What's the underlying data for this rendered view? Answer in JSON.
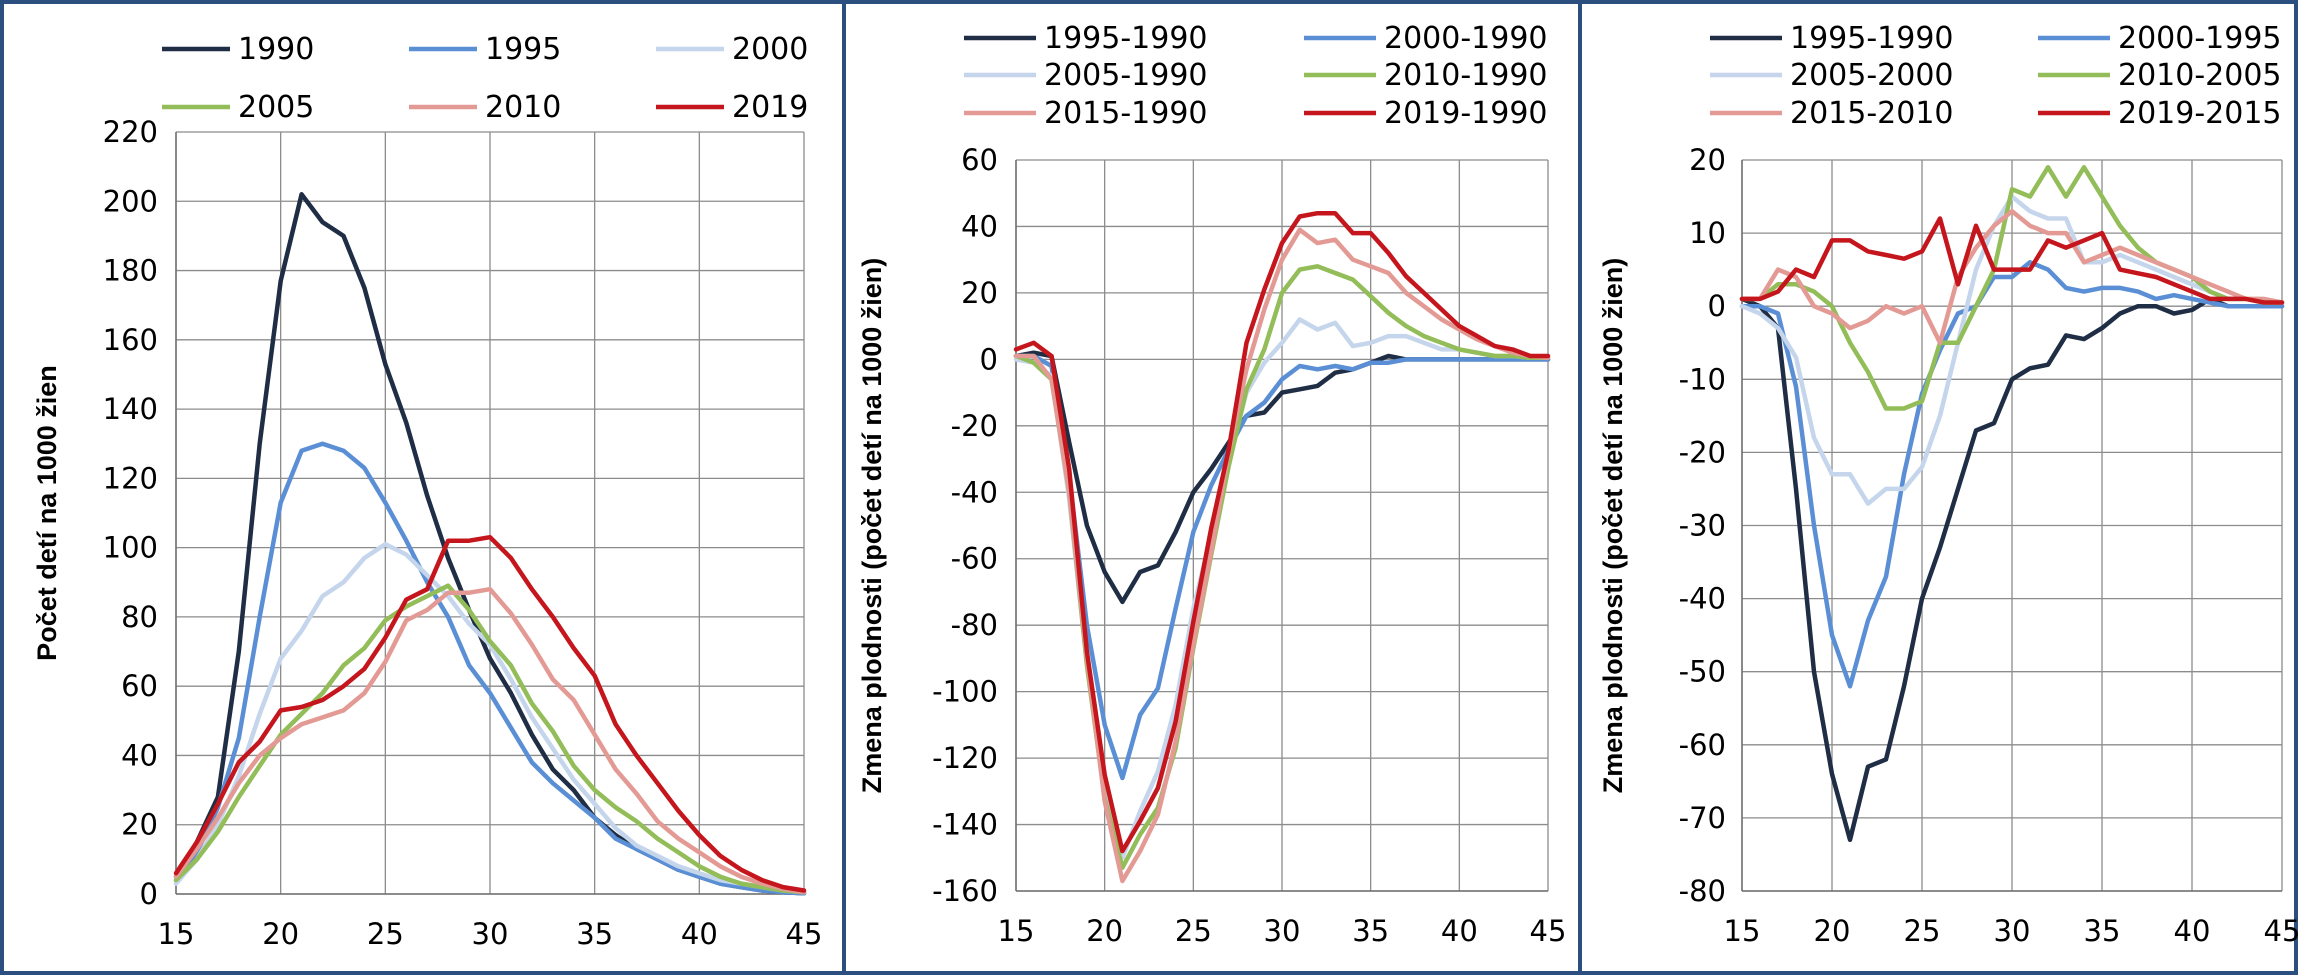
{
  "chart_data": [
    {
      "type": "line",
      "ylabel": "Počet detí na 1000 žien",
      "xlim": [
        15,
        45
      ],
      "ylim": [
        0,
        220
      ],
      "x_ticks": [
        15,
        20,
        25,
        30,
        35,
        40,
        45
      ],
      "y_ticks": [
        0,
        20,
        40,
        60,
        80,
        100,
        120,
        140,
        160,
        180,
        200,
        220
      ],
      "x": [
        15,
        16,
        17,
        18,
        19,
        20,
        21,
        22,
        23,
        24,
        25,
        26,
        27,
        28,
        29,
        30,
        31,
        32,
        33,
        34,
        35,
        36,
        37,
        38,
        39,
        40,
        41,
        42,
        43,
        44,
        45
      ],
      "legend_columns": 3,
      "legend": "top",
      "series": [
        {
          "name": "1990",
          "color": "#1f2d45",
          "values": [
            5,
            15,
            28,
            70,
            130,
            177,
            202,
            194,
            190,
            175,
            153,
            136,
            115,
            97,
            82,
            68,
            58,
            46,
            36,
            30,
            22,
            17,
            13,
            10,
            7,
            5,
            3,
            2,
            1,
            0.5,
            0.2
          ]
        },
        {
          "name": "1995",
          "color": "#5b8fd5",
          "values": [
            4,
            12,
            25,
            45,
            80,
            113,
            128,
            130,
            128,
            123,
            113,
            102,
            90,
            80,
            66,
            58,
            48,
            38,
            32,
            27,
            22,
            16,
            13,
            10,
            7,
            5,
            3,
            2,
            1,
            0.5,
            0.2
          ]
        },
        {
          "name": "2000",
          "color": "#c5d6ec",
          "values": [
            3,
            10,
            20,
            34,
            52,
            68,
            76,
            86,
            90,
            97,
            101,
            98,
            92,
            86,
            78,
            72,
            62,
            51,
            42,
            33,
            26,
            19,
            14,
            11,
            8,
            6,
            4,
            3,
            2,
            1,
            0.5
          ]
        },
        {
          "name": "2005",
          "color": "#92bd58",
          "values": [
            4,
            10,
            18,
            28,
            37,
            46,
            52,
            58,
            66,
            71,
            79,
            83,
            86,
            89,
            82,
            73,
            66,
            55,
            47,
            37,
            30,
            25,
            21,
            16,
            12,
            8,
            5,
            3,
            2,
            1,
            0.5
          ]
        },
        {
          "name": "2010",
          "color": "#e49a94",
          "values": [
            5,
            13,
            22,
            32,
            40,
            45,
            49,
            51,
            53,
            58,
            67,
            79,
            82,
            87,
            87,
            88,
            81,
            72,
            62,
            56,
            46,
            36,
            29,
            21,
            16,
            12,
            8,
            5,
            3,
            1.5,
            0.5
          ]
        },
        {
          "name": "2019",
          "color": "#c4161c",
          "values": [
            6,
            15,
            26,
            38,
            44,
            53,
            54,
            56,
            60,
            65,
            74,
            85,
            88,
            102,
            102,
            103,
            97,
            88,
            80,
            71,
            63,
            49,
            40,
            32,
            24,
            17,
            11,
            7,
            4,
            2,
            1
          ]
        }
      ]
    },
    {
      "type": "line",
      "ylabel": "Zmena plodnosti  (počet detí na 1000 žien)",
      "xlim": [
        15,
        45
      ],
      "ylim": [
        -160,
        60
      ],
      "x_ticks": [
        15,
        20,
        25,
        30,
        35,
        40,
        45
      ],
      "y_ticks": [
        -160,
        -140,
        -120,
        -100,
        -80,
        -60,
        -40,
        -20,
        0,
        20,
        40,
        60
      ],
      "x": [
        15,
        16,
        17,
        18,
        19,
        20,
        21,
        22,
        23,
        24,
        25,
        26,
        27,
        28,
        29,
        30,
        31,
        32,
        33,
        34,
        35,
        36,
        37,
        38,
        39,
        40,
        41,
        42,
        43,
        44,
        45
      ],
      "legend_columns": 2,
      "legend": "top",
      "series": [
        {
          "name": "1995-1990",
          "color": "#1f2d45",
          "values": [
            1,
            2,
            1,
            -25,
            -50,
            -64,
            -73,
            -64,
            -62,
            -52,
            -40,
            -33,
            -25,
            -17,
            -16,
            -10,
            -9,
            -8,
            -4,
            -3,
            -1,
            1,
            0,
            0,
            0,
            0,
            0,
            0,
            0,
            0,
            0
          ]
        },
        {
          "name": "2000-1990",
          "color": "#5b8fd5",
          "values": [
            1,
            1,
            -2,
            -35,
            -80,
            -110,
            -126,
            -107,
            -99,
            -75,
            -52,
            -38,
            -27,
            -17,
            -13,
            -6,
            -2,
            -3,
            -2,
            -3,
            -1,
            -1,
            0,
            0,
            0,
            0,
            0,
            0,
            0,
            0,
            0
          ]
        },
        {
          "name": "2005-1990",
          "color": "#c5d6ec",
          "values": [
            0,
            -1,
            -5,
            -42,
            -92,
            -130,
            -150,
            -136,
            -124,
            -104,
            -75,
            -53,
            -30,
            -10,
            -1,
            5,
            12,
            9,
            11,
            4,
            5,
            7,
            7,
            5,
            3,
            3,
            2,
            1,
            1,
            0.5,
            0.5
          ]
        },
        {
          "name": "2010-1990",
          "color": "#92bd58",
          "values": [
            1,
            -1,
            -6,
            -40,
            -92,
            -132,
            -153,
            -143,
            -135,
            -117,
            -87,
            -59,
            -32,
            -9,
            3,
            20,
            27,
            28,
            26,
            24,
            19,
            14,
            10,
            7,
            5,
            3,
            2,
            1,
            1,
            0.5,
            0.5
          ]
        },
        {
          "name": "2015-1990",
          "color": "#e49a94",
          "values": [
            1,
            1,
            -6,
            -40,
            -90,
            -133,
            -157,
            -148,
            -137,
            -115,
            -86,
            -58,
            -28,
            -3,
            15,
            30,
            39,
            35,
            36,
            30,
            28,
            26,
            20,
            16,
            12,
            9,
            6,
            4,
            2,
            1,
            0.5
          ]
        },
        {
          "name": "2019-1990",
          "color": "#c4161c",
          "values": [
            3,
            5,
            1,
            -33,
            -88,
            -125,
            -148,
            -139,
            -129,
            -109,
            -79,
            -51,
            -27,
            5,
            21,
            35,
            43,
            44,
            44,
            38,
            38,
            32,
            25,
            20,
            15,
            10,
            7,
            4,
            3,
            1,
            1
          ]
        }
      ]
    },
    {
      "type": "line",
      "ylabel": "Zmena plodnosti  (počet detí na 1000 žien)",
      "xlim": [
        15,
        45
      ],
      "ylim": [
        -80,
        20
      ],
      "x_ticks": [
        15,
        20,
        25,
        30,
        35,
        40,
        45
      ],
      "y_ticks": [
        -80,
        -70,
        -60,
        -50,
        -40,
        -30,
        -20,
        -10,
        0,
        10,
        20
      ],
      "x": [
        15,
        16,
        17,
        18,
        19,
        20,
        21,
        22,
        23,
        24,
        25,
        26,
        27,
        28,
        29,
        30,
        31,
        32,
        33,
        34,
        35,
        36,
        37,
        38,
        39,
        40,
        41,
        42,
        43,
        44,
        45
      ],
      "legend_columns": 2,
      "legend": "top",
      "series": [
        {
          "name": "1995-1990",
          "color": "#1f2d45",
          "values": [
            1,
            0,
            -3,
            -25,
            -50,
            -64,
            -73,
            -63,
            -62,
            -52,
            -40,
            -33,
            -25,
            -17,
            -16,
            -10,
            -8.5,
            -8,
            -4,
            -4.5,
            -3,
            -1,
            0,
            0,
            -1,
            -0.5,
            1,
            0,
            0,
            0,
            0
          ]
        },
        {
          "name": "2000-1995",
          "color": "#5b8fd5",
          "values": [
            0,
            0,
            -1,
            -11,
            -30,
            -45,
            -52,
            -43,
            -37,
            -23,
            -12,
            -6,
            -1,
            0,
            4,
            4,
            6,
            5,
            2.5,
            2,
            2.5,
            2.5,
            2,
            1,
            1.5,
            1,
            0.5,
            0,
            0,
            0,
            0
          ]
        },
        {
          "name": "2005-2000",
          "color": "#c5d6ec",
          "values": [
            0,
            -1,
            -3,
            -7,
            -18,
            -23,
            -23,
            -27,
            -25,
            -25,
            -22,
            -15,
            -5,
            5,
            11,
            15,
            13,
            12,
            12,
            6,
            6,
            7,
            6,
            5,
            4,
            3,
            2,
            1,
            1,
            0.5,
            0.5
          ]
        },
        {
          "name": "2010-2005",
          "color": "#92bd58",
          "values": [
            1,
            1,
            3,
            3,
            2,
            0,
            -5,
            -9,
            -14,
            -14,
            -13,
            -5,
            -5,
            0,
            5,
            16,
            15,
            19,
            15,
            19,
            15,
            11,
            8,
            6,
            5,
            4,
            2,
            1,
            1,
            0.5,
            0.5
          ]
        },
        {
          "name": "2015-2010",
          "color": "#e49a94",
          "values": [
            1,
            1,
            5,
            4,
            0,
            -1,
            -3,
            -2,
            0,
            -1,
            0,
            -5,
            4,
            8,
            11,
            13,
            11,
            10,
            10,
            6,
            7,
            8,
            7,
            6,
            5,
            4,
            3,
            2,
            1,
            1,
            0.5
          ]
        },
        {
          "name": "2019-2015",
          "color": "#c4161c",
          "values": [
            1,
            1,
            2,
            5,
            4,
            9,
            9,
            7.5,
            7,
            6.5,
            7.5,
            12,
            3,
            11,
            5,
            5,
            5,
            9,
            8,
            9,
            10,
            5,
            4.5,
            4,
            3,
            2,
            1,
            1,
            1,
            0.5,
            0.5
          ]
        }
      ]
    }
  ]
}
